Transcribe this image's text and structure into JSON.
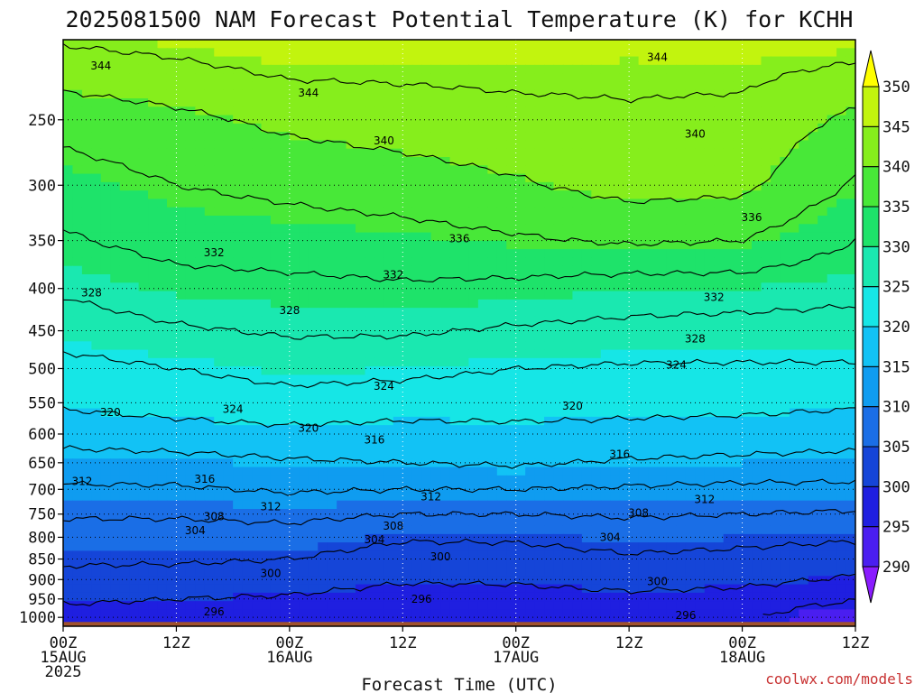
{
  "title": "2025081500 NAM Forecast Potential Temperature (K) for KCHH",
  "credit": "coolwx.com/models",
  "chart_data": {
    "type": "heatmap",
    "title": "2025081500 NAM Forecast Potential Temperature (K) for KCHH",
    "xlabel": "Forecast Time (UTC)",
    "ylabel": "",
    "x_ticks": [
      {
        "hour": 0,
        "lines": [
          "00Z",
          "15AUG",
          "2025"
        ]
      },
      {
        "hour": 12,
        "lines": [
          "12Z"
        ]
      },
      {
        "hour": 24,
        "lines": [
          "00Z",
          "16AUG"
        ]
      },
      {
        "hour": 36,
        "lines": [
          "12Z"
        ]
      },
      {
        "hour": 48,
        "lines": [
          "00Z",
          "17AUG"
        ]
      },
      {
        "hour": 60,
        "lines": [
          "12Z"
        ]
      },
      {
        "hour": 72,
        "lines": [
          "00Z",
          "18AUG"
        ]
      },
      {
        "hour": 84,
        "lines": [
          "12Z"
        ]
      }
    ],
    "xlim": [
      0,
      84
    ],
    "y_ticks": [
      250,
      300,
      350,
      400,
      450,
      500,
      550,
      600,
      650,
      700,
      750,
      800,
      850,
      900,
      950,
      1000
    ],
    "ylim": [
      1025,
      200
    ],
    "y_scale": "log",
    "grid": true,
    "colorbar": {
      "ticks": [
        290,
        295,
        300,
        305,
        310,
        315,
        320,
        325,
        330,
        335,
        340,
        345,
        350
      ],
      "bins": [
        {
          "value": 285,
          "color": "#8a1cff"
        },
        {
          "value": 290,
          "color": "#4a1ef0"
        },
        {
          "value": 295,
          "color": "#1f1fe0"
        },
        {
          "value": 300,
          "color": "#1545d8"
        },
        {
          "value": 305,
          "color": "#1a6ee6"
        },
        {
          "value": 310,
          "color": "#0f9cf0"
        },
        {
          "value": 315,
          "color": "#12c2f5"
        },
        {
          "value": 320,
          "color": "#16e6e6"
        },
        {
          "value": 325,
          "color": "#1ae8b0"
        },
        {
          "value": 330,
          "color": "#1ee36a"
        },
        {
          "value": 335,
          "color": "#48e838"
        },
        {
          "value": 340,
          "color": "#86ee1c"
        },
        {
          "value": 345,
          "color": "#c2f40e"
        },
        {
          "value": 350,
          "color": "#ffff00"
        }
      ]
    },
    "contour_interval": 4,
    "terrain_color": "#a0522d",
    "surface_pressure": 1013,
    "levels": [
      1000,
      950,
      900,
      850,
      800,
      750,
      700,
      650,
      600,
      550,
      500,
      450,
      400,
      350,
      300,
      250,
      200
    ],
    "hours": [
      0,
      12,
      24,
      36,
      48,
      60,
      72,
      84
    ],
    "theta": [
      [
        297.5,
        297.0,
        297.5,
        297.8,
        297.6,
        297.2,
        296.8,
        292.0
      ],
      [
        301.0,
        300.0,
        299.5,
        298.0,
        298.5,
        299.0,
        298.5,
        296.5
      ],
      [
        303.0,
        302.5,
        302.0,
        300.5,
        300.5,
        301.5,
        301.0,
        299.5
      ],
      [
        304.5,
        304.5,
        304.0,
        302.0,
        302.5,
        303.5,
        303.0,
        302.0
      ],
      [
        306.0,
        306.0,
        306.5,
        304.5,
        304.5,
        305.5,
        305.0,
        304.5
      ],
      [
        308.5,
        308.5,
        309.0,
        308.0,
        308.0,
        308.5,
        308.0,
        307.5
      ],
      [
        311.5,
        311.5,
        312.5,
        312.0,
        312.0,
        311.5,
        311.0,
        311.0
      ],
      [
        314.0,
        314.5,
        315.5,
        316.0,
        316.5,
        315.5,
        315.0,
        314.5
      ],
      [
        318.0,
        318.5,
        319.0,
        318.5,
        319.0,
        319.0,
        318.5,
        318.0
      ],
      [
        320.5,
        321.5,
        322.5,
        322.0,
        321.5,
        321.0,
        321.0,
        320.5
      ],
      [
        322.5,
        324.0,
        325.5,
        325.0,
        324.0,
        323.5,
        323.5,
        323.5
      ],
      [
        326.0,
        327.5,
        328.5,
        328.5,
        327.5,
        327.0,
        326.5,
        326.5
      ],
      [
        328.5,
        330.5,
        331.0,
        331.5,
        331.0,
        330.0,
        330.0,
        329.0
      ],
      [
        331.5,
        333.5,
        334.0,
        334.5,
        335.5,
        336.5,
        336.0,
        332.0
      ],
      [
        334.0,
        336.0,
        337.0,
        338.0,
        339.5,
        341.5,
        341.0,
        335.5
      ],
      [
        337.5,
        339.0,
        341.0,
        342.0,
        343.0,
        343.5,
        343.0,
        339.0
      ],
      [
        344.5,
        345.5,
        347.0,
        346.5,
        346.0,
        345.5,
        346.0,
        346.0
      ]
    ],
    "contour_labels": [
      {
        "text": "344",
        "hour": 4,
        "p": 215
      },
      {
        "text": "344",
        "hour": 26,
        "p": 232
      },
      {
        "text": "344",
        "hour": 63,
        "p": 210
      },
      {
        "text": "340",
        "hour": 34,
        "p": 265
      },
      {
        "text": "340",
        "hour": 67,
        "p": 260
      },
      {
        "text": "336",
        "hour": 42,
        "p": 348
      },
      {
        "text": "336",
        "hour": 73,
        "p": 328
      },
      {
        "text": "332",
        "hour": 16,
        "p": 362
      },
      {
        "text": "332",
        "hour": 35,
        "p": 385
      },
      {
        "text": "332",
        "hour": 69,
        "p": 410
      },
      {
        "text": "328",
        "hour": 3,
        "p": 405
      },
      {
        "text": "328",
        "hour": 24,
        "p": 425
      },
      {
        "text": "328",
        "hour": 67,
        "p": 460
      },
      {
        "text": "324",
        "hour": 65,
        "p": 495
      },
      {
        "text": "324",
        "hour": 34,
        "p": 525
      },
      {
        "text": "324",
        "hour": 18,
        "p": 560
      },
      {
        "text": "320",
        "hour": 5,
        "p": 565
      },
      {
        "text": "320",
        "hour": 26,
        "p": 590
      },
      {
        "text": "320",
        "hour": 54,
        "p": 555
      },
      {
        "text": "316",
        "hour": 33,
        "p": 610
      },
      {
        "text": "316",
        "hour": 59,
        "p": 635
      },
      {
        "text": "316",
        "hour": 15,
        "p": 680
      },
      {
        "text": "312",
        "hour": 2,
        "p": 685
      },
      {
        "text": "312",
        "hour": 22,
        "p": 735
      },
      {
        "text": "312",
        "hour": 39,
        "p": 715
      },
      {
        "text": "312",
        "hour": 68,
        "p": 720
      },
      {
        "text": "308",
        "hour": 16,
        "p": 755
      },
      {
        "text": "308",
        "hour": 35,
        "p": 775
      },
      {
        "text": "308",
        "hour": 61,
        "p": 748
      },
      {
        "text": "304",
        "hour": 14,
        "p": 785
      },
      {
        "text": "304",
        "hour": 33,
        "p": 805
      },
      {
        "text": "304",
        "hour": 58,
        "p": 800
      },
      {
        "text": "300",
        "hour": 22,
        "p": 885
      },
      {
        "text": "300",
        "hour": 40,
        "p": 845
      },
      {
        "text": "300",
        "hour": 63,
        "p": 905
      },
      {
        "text": "296",
        "hour": 16,
        "p": 985
      },
      {
        "text": "296",
        "hour": 38,
        "p": 950
      },
      {
        "text": "296",
        "hour": 66,
        "p": 995
      }
    ]
  }
}
